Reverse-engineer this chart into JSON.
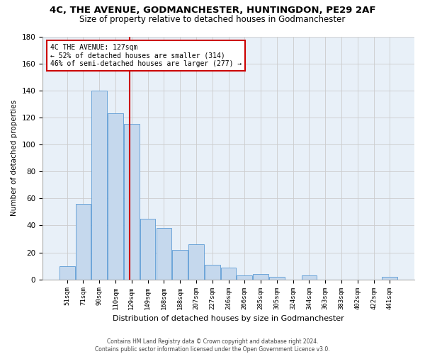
{
  "title1": "4C, THE AVENUE, GODMANCHESTER, HUNTINGDON, PE29 2AF",
  "title2": "Size of property relative to detached houses in Godmanchester",
  "xlabel": "Distribution of detached houses by size in Godmanchester",
  "ylabel": "Number of detached properties",
  "categories": [
    "51sqm",
    "71sqm",
    "90sqm",
    "110sqm",
    "129sqm",
    "149sqm",
    "168sqm",
    "188sqm",
    "207sqm",
    "227sqm",
    "246sqm",
    "266sqm",
    "285sqm",
    "305sqm",
    "324sqm",
    "344sqm",
    "363sqm",
    "383sqm",
    "402sqm",
    "422sqm",
    "441sqm"
  ],
  "values": [
    10,
    56,
    140,
    123,
    115,
    45,
    38,
    22,
    26,
    11,
    9,
    3,
    4,
    2,
    0,
    3,
    0,
    0,
    0,
    0,
    2
  ],
  "bar_color": "#c5d8ed",
  "bar_edge_color": "#5b9bd5",
  "ref_line_label": "4C THE AVENUE: 127sqm",
  "annotation_line1": "← 52% of detached houses are smaller (314)",
  "annotation_line2": "46% of semi-detached houses are larger (277) →",
  "annotation_box_color": "#ffffff",
  "annotation_box_edge": "#cc0000",
  "ref_line_color": "#cc0000",
  "ylim": [
    0,
    180
  ],
  "grid_color": "#cccccc",
  "bg_color": "#e8f0f8",
  "footer1": "Contains HM Land Registry data © Crown copyright and database right 2024.",
  "footer2": "Contains public sector information licensed under the Open Government Licence v3.0.",
  "title1_fontsize": 9.5,
  "title2_fontsize": 8.5,
  "bar_width": 0.95
}
